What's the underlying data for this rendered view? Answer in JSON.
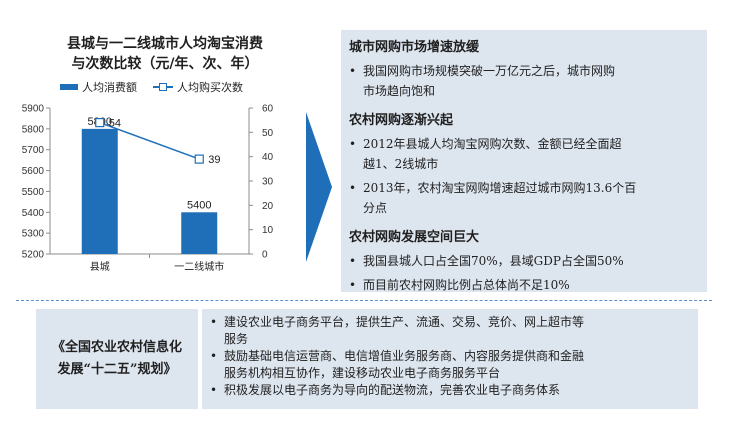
{
  "chart_data": {
    "type": "bar",
    "title_line1": "县城与一二线城市人均淘宝消费",
    "title_line2": "与次数比较（元/年、次、年）",
    "categories": [
      "县城",
      "一二线城市"
    ],
    "series": [
      {
        "name": "人均消费额",
        "kind": "bar",
        "axis": "left",
        "values": [
          5800,
          5400
        ],
        "labels": [
          "5800",
          "5400"
        ]
      },
      {
        "name": "人均购买次数",
        "kind": "line",
        "axis": "right",
        "values": [
          54,
          39
        ],
        "labels": [
          "54",
          "39"
        ]
      }
    ],
    "y_left": {
      "min": 5200,
      "max": 5900,
      "ticks": [
        "5200",
        "5300",
        "5400",
        "5500",
        "5600",
        "5700",
        "5800",
        "5900"
      ]
    },
    "y_right": {
      "min": 0,
      "max": 60,
      "ticks": [
        "0",
        "10",
        "20",
        "30",
        "40",
        "50",
        "60"
      ]
    },
    "legend_position": "top",
    "colors": {
      "bar": "#1f6fb8",
      "line": "#1f6fb8",
      "axis": "#8c8c8c"
    }
  },
  "right_panel": {
    "sections": [
      {
        "title": "城市网购市场增速放缓",
        "bullets": [
          [
            "我国网购市场规模突破一万亿元之后，城市网购",
            "市场趋向饱和"
          ]
        ]
      },
      {
        "title": "农村网购逐渐兴起",
        "bullets": [
          [
            "2012年县城人均淘宝网购次数、金额已经全面超",
            "越1、2线城市"
          ],
          [
            "2013年，农村淘宝网购增速超过城市网购13.6个百",
            "分点"
          ]
        ]
      },
      {
        "title": "农村网购发展空间巨大",
        "bullets": [
          [
            "我国县城人口占全国70%，县域GDP占全国50%"
          ],
          [
            "而目前农村网购比例占总体尚不足10%"
          ]
        ]
      }
    ]
  },
  "policy": {
    "title_line1": "《全国农业农村信息化",
    "title_line2": "发展“十二五”规划》",
    "items": [
      [
        "建设农业电子商务平台，提供生产、流通、交易、竞价、网上超市等",
        "服务"
      ],
      [
        "鼓励基础电信运营商、电信增值业务服务商、内容服务提供商和金融",
        "服务机构相互协作，建设移动农业电子商务服务平台"
      ],
      [
        "积极发展以电子商务为导向的配送物流，完善农业电子商务体系"
      ]
    ]
  },
  "bullet_symbol": "•",
  "colors": {
    "panel_bg": "#dde5ef",
    "accent": "#1f6fb8",
    "divider": "#5b8ec7"
  }
}
